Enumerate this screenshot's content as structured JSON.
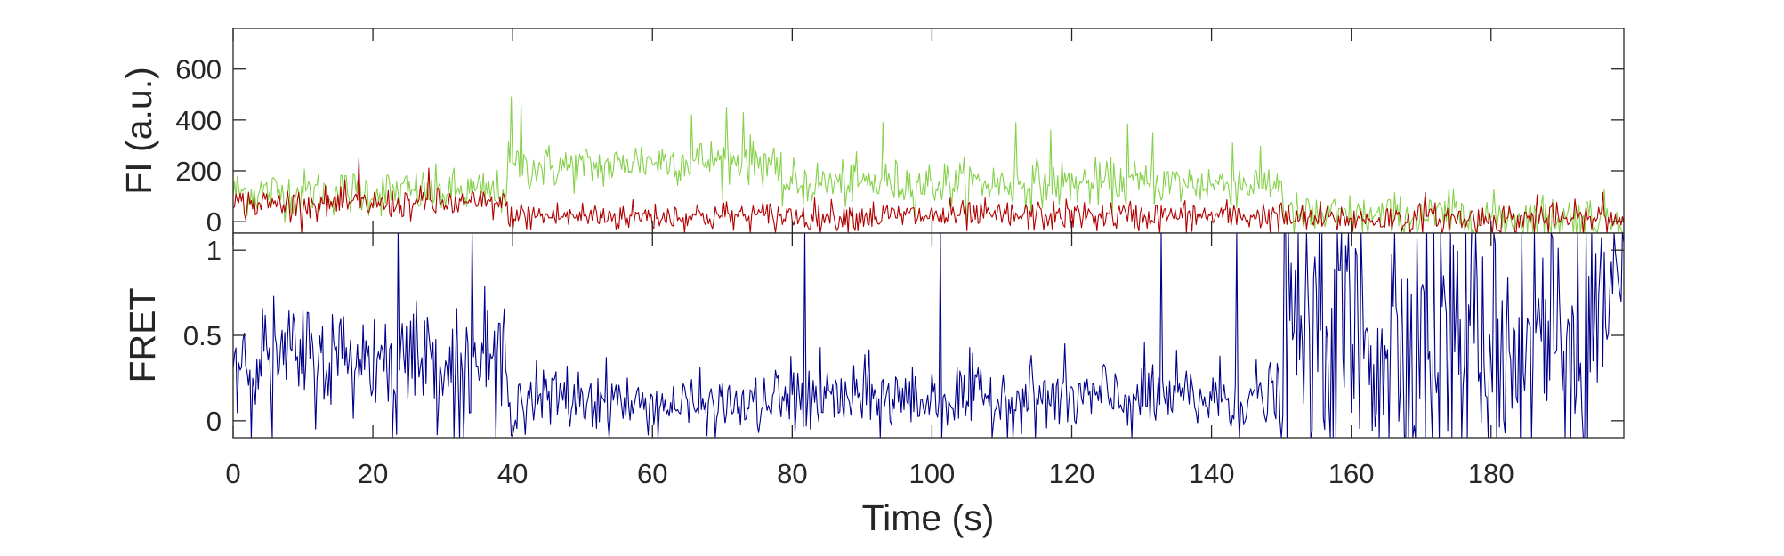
{
  "figure": {
    "xlabel": "Time (s)",
    "x_tick_labels": [
      "0",
      "20",
      "40",
      "60",
      "80",
      "100",
      "120",
      "140",
      "160",
      "180"
    ]
  },
  "chart_data": [
    {
      "type": "line",
      "ylabel": "FI (a.u.)",
      "xlim": [
        0,
        199
      ],
      "ylim": [
        -45,
        760
      ],
      "y_ticks": [
        0,
        200,
        400,
        600
      ],
      "y_tick_labels": [
        "0",
        "200",
        "400",
        "600"
      ],
      "grid": false,
      "sample_interval": 0.2,
      "series": [
        {
          "color": "#85d14a",
          "noise": 45,
          "segments": [
            {
              "from": 0,
              "to": 39.2,
              "mean": 115
            },
            {
              "from": 39.2,
              "to": 56,
              "mean": 215
            },
            {
              "from": 56,
              "to": 77.5,
              "mean": 240
            },
            {
              "from": 77.5,
              "to": 150.3,
              "mean": 150
            },
            {
              "from": 150.3,
              "to": 199,
              "mean": 18
            }
          ],
          "spikes": [
            [
              39.8,
              490
            ],
            [
              41.2,
              460
            ],
            [
              65.5,
              420
            ],
            [
              70.5,
              450
            ],
            [
              73,
              430
            ],
            [
              93,
              390
            ],
            [
              112,
              390
            ],
            [
              117,
              360
            ],
            [
              128,
              385
            ],
            [
              131.5,
              350
            ],
            [
              143,
              310
            ],
            [
              174,
              130
            ]
          ]
        },
        {
          "color": "#b00000",
          "noise": 30,
          "segments": [
            {
              "from": 0,
              "to": 39.2,
              "mean": 70
            },
            {
              "from": 39.2,
              "to": 150.3,
              "mean": 22
            },
            {
              "from": 150.3,
              "to": 199,
              "mean": 10
            }
          ],
          "spikes": [
            [
              18,
              250
            ],
            [
              28,
              210
            ],
            [
              170.5,
              115
            ],
            [
              186.5,
              105
            ],
            [
              196,
              115
            ]
          ]
        }
      ]
    },
    {
      "type": "line",
      "ylabel": "FRET",
      "xlim": [
        0,
        199
      ],
      "ylim": [
        -0.1,
        1.1
      ],
      "y_ticks": [
        0,
        0.5,
        1
      ],
      "y_tick_labels": [
        "0",
        "0.5",
        "1"
      ],
      "grid": false,
      "sample_interval": 0.2,
      "series": [
        {
          "color": "#00008b",
          "noise": 0.16,
          "segments": [
            {
              "from": 0,
              "to": 39.2,
              "mean": 0.37
            },
            {
              "from": 39.2,
              "to": 56,
              "mean": 0.13
            },
            {
              "from": 56,
              "to": 77.5,
              "mean": 0.09
            },
            {
              "from": 77.5,
              "to": 150.3,
              "mean": 0.13
            },
            {
              "from": 150.3,
              "to": 199,
              "mean": 0.5
            }
          ],
          "segment_noise": [
            0.16,
            0.1,
            0.08,
            0.11,
            0.45
          ],
          "spikes": [
            [
              23.5,
              1.1
            ],
            [
              34.3,
              1.1
            ],
            [
              81.7,
              1.1
            ],
            [
              101.3,
              1.1
            ],
            [
              132.8,
              1.1
            ],
            [
              143.5,
              1.1
            ],
            [
              5.5,
              -0.1
            ],
            [
              22.8,
              -0.1
            ],
            [
              31.5,
              -0.1
            ],
            [
              33,
              -0.1
            ],
            [
              37.5,
              -0.1
            ]
          ]
        }
      ]
    }
  ]
}
